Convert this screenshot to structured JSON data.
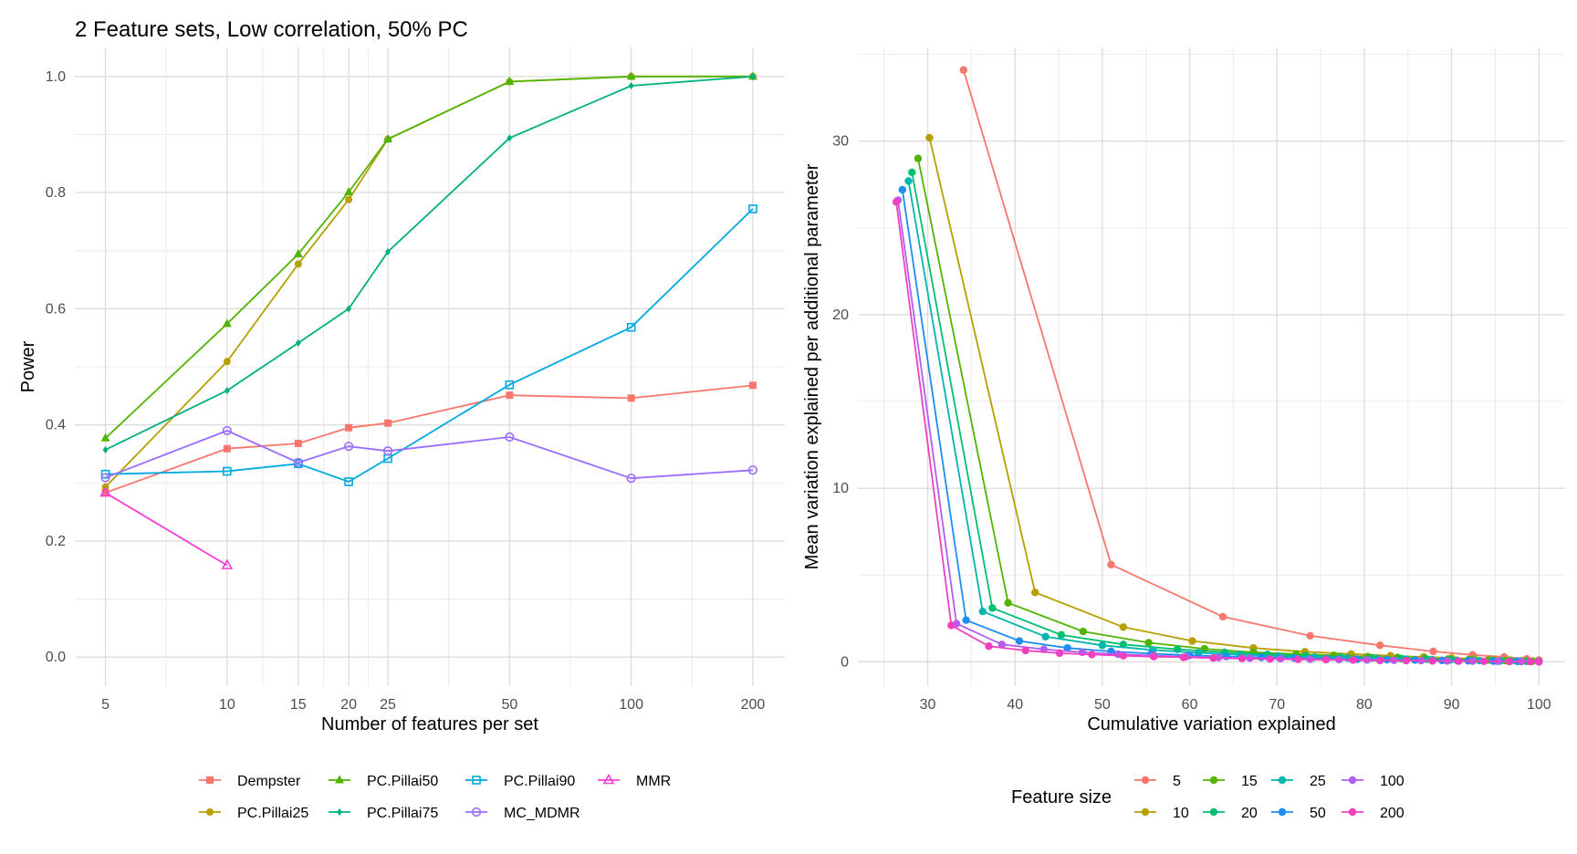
{
  "title": "2 Feature sets, Low correlation, 50% PC",
  "chart_data": [
    {
      "type": "line",
      "xlabel": "Number of features per set",
      "ylabel": "Power",
      "x_scale": "log",
      "x_ticks": [
        5,
        10,
        15,
        20,
        25,
        50,
        100,
        200
      ],
      "y_ticks": [
        "0.0",
        "0.2",
        "0.4",
        "0.6",
        "0.8",
        "1.0"
      ],
      "xlim": [
        4.2,
        240
      ],
      "ylim": [
        -0.05,
        1.05
      ],
      "grid": true,
      "legend_position": "bottom",
      "series": [
        {
          "name": "Dempster",
          "color": "#F8766D",
          "marker": "square-filled",
          "x": [
            5,
            10,
            15,
            20,
            25,
            50,
            100,
            200
          ],
          "y": [
            0.283,
            0.359,
            0.368,
            0.395,
            0.403,
            0.451,
            0.446,
            0.468
          ]
        },
        {
          "name": "PC.Pillai25",
          "color": "#B79F00",
          "marker": "circle-filled",
          "x": [
            5,
            10,
            15,
            20,
            25,
            50,
            100,
            200
          ],
          "y": [
            0.293,
            0.509,
            0.677,
            0.788,
            0.892,
            0.991,
            1.0,
            1.0
          ]
        },
        {
          "name": "PC.Pillai50",
          "color": "#53B400",
          "marker": "triangle-filled",
          "x": [
            5,
            10,
            15,
            20,
            25,
            50,
            100,
            200
          ],
          "y": [
            0.377,
            0.574,
            0.694,
            0.801,
            0.892,
            0.991,
            1.0,
            1.0
          ]
        },
        {
          "name": "PC.Pillai75",
          "color": "#00B080",
          "marker": "diamond-filled",
          "x": [
            5,
            10,
            15,
            20,
            25,
            50,
            100,
            200
          ],
          "y": [
            0.357,
            0.459,
            0.541,
            0.6,
            0.698,
            0.894,
            0.984,
            1.0
          ]
        },
        {
          "name": "PC.Pillai90",
          "color": "#00A9E0",
          "marker": "square-open",
          "x": [
            5,
            10,
            15,
            20,
            25,
            50,
            100,
            200
          ],
          "y": [
            0.315,
            0.32,
            0.333,
            0.302,
            0.342,
            0.469,
            0.568,
            0.772
          ]
        },
        {
          "name": "MC_MDMR",
          "color": "#9B6DFF",
          "marker": "circle-open",
          "x": [
            5,
            10,
            15,
            20,
            25,
            50,
            100,
            200
          ],
          "y": [
            0.309,
            0.39,
            0.335,
            0.363,
            0.355,
            0.379,
            0.308,
            0.322
          ]
        },
        {
          "name": "MMR",
          "color": "#F23FD2",
          "marker": "triangle-open",
          "x": [
            5,
            10
          ],
          "y": [
            0.283,
            0.158
          ]
        }
      ]
    },
    {
      "type": "line",
      "xlabel": "Cumulative variation explained",
      "ylabel": "Mean variation explained per additional parameter",
      "x_ticks": [
        30,
        40,
        50,
        60,
        70,
        80,
        90,
        100
      ],
      "y_ticks": [
        0,
        10,
        20,
        30
      ],
      "xlim": [
        22,
        103
      ],
      "ylim": [
        -1.4,
        35.4
      ],
      "grid": true,
      "legend_title": "Feature size",
      "legend_position": "bottom",
      "series": [
        {
          "name": "5",
          "color": "#F8766D",
          "x": [
            34.1,
            51.0,
            63.8,
            73.8,
            81.8,
            87.9,
            92.4,
            96.0,
            98.6,
            100
          ],
          "y": [
            34.1,
            5.6,
            2.6,
            1.5,
            0.95,
            0.6,
            0.4,
            0.28,
            0.17,
            0.1
          ]
        },
        {
          "name": "10",
          "color": "#B79F00",
          "x": [
            30.2,
            42.3,
            52.4,
            60.3,
            67.3,
            73.2,
            78.5,
            83.0,
            86.8,
            90.0,
            92.6,
            94.9,
            96.7,
            98.2,
            99.3,
            100
          ],
          "y": [
            30.2,
            4.0,
            2.0,
            1.2,
            0.8,
            0.58,
            0.45,
            0.35,
            0.28,
            0.22,
            0.17,
            0.13,
            0.1,
            0.07,
            0.05,
            0.03
          ]
        },
        {
          "name": "15",
          "color": "#53B400",
          "x": [
            28.9,
            39.2,
            47.8,
            55.3,
            61.7,
            67.3,
            72.2,
            76.5,
            80.4,
            83.8,
            86.9,
            89.6,
            92.0,
            94.2,
            96.2,
            97.9,
            99.2,
            100
          ],
          "y": [
            29.0,
            3.4,
            1.75,
            1.1,
            0.75,
            0.55,
            0.45,
            0.37,
            0.3,
            0.25,
            0.2,
            0.16,
            0.13,
            0.1,
            0.07,
            0.05,
            0.03,
            0.02
          ]
        },
        {
          "name": "20",
          "color": "#00C070",
          "x": [
            28.2,
            37.4,
            45.3,
            52.4,
            58.6,
            64.0,
            68.9,
            73.3,
            77.3,
            80.9,
            84.2,
            87.2,
            89.9,
            92.4,
            94.7,
            96.8,
            98.6,
            100
          ],
          "y": [
            28.2,
            3.1,
            1.55,
            1.0,
            0.72,
            0.55,
            0.43,
            0.35,
            0.28,
            0.23,
            0.19,
            0.15,
            0.12,
            0.1,
            0.07,
            0.05,
            0.03,
            0.02
          ]
        },
        {
          "name": "25",
          "color": "#00B5AE",
          "x": [
            27.8,
            36.3,
            43.5,
            50.0,
            55.8,
            61.0,
            65.8,
            70.2,
            74.3,
            78.1,
            81.6,
            84.8,
            87.8,
            90.6,
            93.2,
            95.6,
            97.8,
            100
          ],
          "y": [
            27.7,
            2.9,
            1.45,
            0.95,
            0.68,
            0.52,
            0.41,
            0.33,
            0.27,
            0.22,
            0.18,
            0.15,
            0.12,
            0.09,
            0.07,
            0.05,
            0.03,
            0.02
          ]
        },
        {
          "name": "50",
          "color": "#1E8CF0",
          "x": [
            27.1,
            34.4,
            40.5,
            46.0,
            51.0,
            55.6,
            60.0,
            64.2,
            68.2,
            72.0,
            75.7,
            79.2,
            82.6,
            85.8,
            88.9,
            91.9,
            94.8,
            97.5,
            100
          ],
          "y": [
            27.2,
            2.4,
            1.2,
            0.8,
            0.6,
            0.47,
            0.38,
            0.31,
            0.26,
            0.22,
            0.18,
            0.15,
            0.12,
            0.1,
            0.08,
            0.06,
            0.04,
            0.03,
            0.02
          ]
        },
        {
          "name": "100",
          "color": "#B15EF0",
          "x": [
            26.6,
            33.3,
            38.5,
            43.3,
            47.7,
            51.8,
            55.8,
            59.6,
            63.3,
            66.9,
            70.4,
            73.8,
            77.1,
            80.3,
            83.4,
            86.5,
            89.5,
            92.4,
            95.3,
            98.0,
            100
          ],
          "y": [
            26.6,
            2.2,
            1.0,
            0.72,
            0.55,
            0.44,
            0.36,
            0.3,
            0.25,
            0.21,
            0.18,
            0.15,
            0.13,
            0.11,
            0.09,
            0.07,
            0.05,
            0.04,
            0.03,
            0.02,
            0.01
          ]
        },
        {
          "name": "200",
          "color": "#F040C0",
          "x": [
            26.4,
            32.7,
            37.0,
            41.2,
            45.1,
            48.8,
            52.4,
            55.9,
            59.3,
            62.7,
            66.0,
            69.2,
            72.4,
            75.6,
            78.7,
            81.8,
            84.8,
            87.8,
            90.8,
            93.7,
            96.6,
            99.0,
            100
          ],
          "y": [
            26.5,
            2.1,
            0.9,
            0.65,
            0.5,
            0.42,
            0.35,
            0.3,
            0.26,
            0.22,
            0.19,
            0.16,
            0.14,
            0.12,
            0.1,
            0.08,
            0.07,
            0.05,
            0.04,
            0.03,
            0.02,
            0.01,
            0.0
          ]
        }
      ]
    }
  ]
}
